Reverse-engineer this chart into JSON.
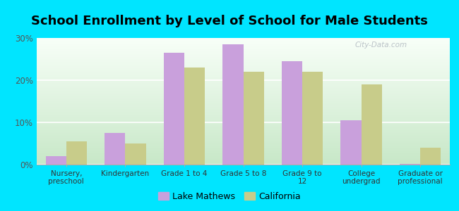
{
  "title": "School Enrollment by Level of School for Male Students",
  "categories": [
    "Nursery,\npreschool",
    "Kindergarten",
    "Grade 1 to 4",
    "Grade 5 to 8",
    "Grade 9 to\n12",
    "College\nundergrad",
    "Graduate or\nprofessional"
  ],
  "lake_mathews": [
    2.0,
    7.5,
    26.5,
    28.5,
    24.5,
    10.5,
    0.2
  ],
  "california": [
    5.5,
    5.0,
    23.0,
    22.0,
    22.0,
    19.0,
    4.0
  ],
  "lake_mathews_color": "#c9a0dc",
  "california_color": "#c8cc8a",
  "background_color": "#00e5ff",
  "ylim": [
    0,
    30
  ],
  "yticks": [
    0,
    10,
    20,
    30
  ],
  "ytick_labels": [
    "0%",
    "10%",
    "20%",
    "30%"
  ],
  "title_fontsize": 13,
  "legend_labels": [
    "Lake Mathews",
    "California"
  ],
  "bar_width": 0.35,
  "watermark": "City-Data.com"
}
